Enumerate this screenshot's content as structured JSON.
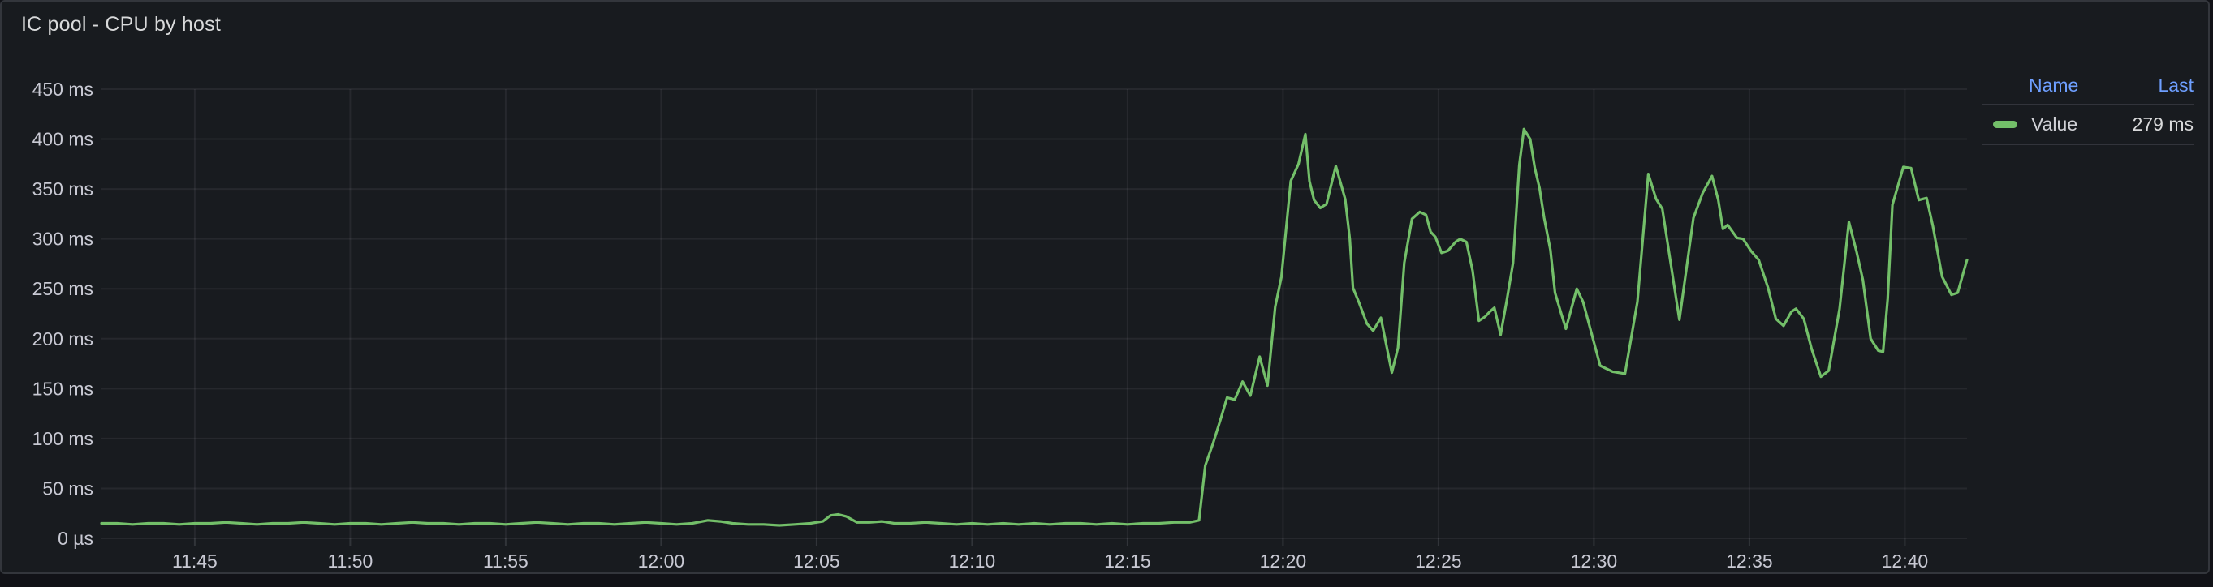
{
  "panel": {
    "title": "IC pool - CPU by host"
  },
  "legend": {
    "columns": [
      "Name",
      "Last"
    ],
    "rows": [
      {
        "name": "Value",
        "last": "279 ms",
        "color": "#73bf69"
      }
    ]
  },
  "colors": {
    "page_background": "#111217",
    "panel_background": "#181b1f",
    "panel_border": "#33363c",
    "series_green": "#73bf69",
    "legend_header_blue": "#6e9fff",
    "axis_text": "#c8c9d3",
    "title_text": "#d8d9da",
    "gridline": "rgba(204,204,220,0.08)"
  },
  "chart_data": {
    "type": "line",
    "title": "IC pool - CPU by host",
    "xlabel": "",
    "ylabel": "",
    "x_unit": "time of day (minutes after 11:40)",
    "y_unit": "ms",
    "x_range_minutes": [
      2,
      62
    ],
    "x_window": [
      "11:42",
      "12:42"
    ],
    "ylim": [
      0,
      450
    ],
    "grid": true,
    "legend_position": "right-top",
    "x_ticks": [
      {
        "t": 5,
        "label": "11:45"
      },
      {
        "t": 10,
        "label": "11:50"
      },
      {
        "t": 15,
        "label": "11:55"
      },
      {
        "t": 20,
        "label": "12:00"
      },
      {
        "t": 25,
        "label": "12:05"
      },
      {
        "t": 30,
        "label": "12:10"
      },
      {
        "t": 35,
        "label": "12:15"
      },
      {
        "t": 40,
        "label": "12:20"
      },
      {
        "t": 45,
        "label": "12:25"
      },
      {
        "t": 50,
        "label": "12:30"
      },
      {
        "t": 55,
        "label": "12:35"
      },
      {
        "t": 60,
        "label": "12:40"
      }
    ],
    "y_ticks": [
      {
        "v": 0,
        "label": "0 µs"
      },
      {
        "v": 50,
        "label": "50 ms"
      },
      {
        "v": 100,
        "label": "100 ms"
      },
      {
        "v": 150,
        "label": "150 ms"
      },
      {
        "v": 200,
        "label": "200 ms"
      },
      {
        "v": 250,
        "label": "250 ms"
      },
      {
        "v": 300,
        "label": "300 ms"
      },
      {
        "v": 350,
        "label": "350 ms"
      },
      {
        "v": 400,
        "label": "400 ms"
      },
      {
        "v": 450,
        "label": "450 ms"
      }
    ],
    "series": [
      {
        "name": "Value",
        "color": "#73bf69",
        "last_value_ms": 279,
        "last_label": "279 ms",
        "points": [
          [
            2,
            15
          ],
          [
            2.5,
            15
          ],
          [
            3,
            14
          ],
          [
            3.5,
            15
          ],
          [
            4,
            15
          ],
          [
            4.5,
            14
          ],
          [
            5,
            15
          ],
          [
            5.5,
            15
          ],
          [
            6,
            16
          ],
          [
            6.5,
            15
          ],
          [
            7,
            14
          ],
          [
            7.5,
            15
          ],
          [
            8,
            15
          ],
          [
            8.5,
            16
          ],
          [
            9,
            15
          ],
          [
            9.5,
            14
          ],
          [
            10,
            15
          ],
          [
            10.5,
            15
          ],
          [
            11,
            14
          ],
          [
            11.5,
            15
          ],
          [
            12,
            16
          ],
          [
            12.5,
            15
          ],
          [
            13,
            15
          ],
          [
            13.5,
            14
          ],
          [
            14,
            15
          ],
          [
            14.5,
            15
          ],
          [
            15,
            14
          ],
          [
            15.5,
            15
          ],
          [
            16,
            16
          ],
          [
            16.5,
            15
          ],
          [
            17,
            14
          ],
          [
            17.5,
            15
          ],
          [
            18,
            15
          ],
          [
            18.5,
            14
          ],
          [
            19,
            15
          ],
          [
            19.5,
            16
          ],
          [
            20,
            15
          ],
          [
            20.5,
            14
          ],
          [
            21,
            15
          ],
          [
            21.5,
            18
          ],
          [
            21.9,
            17
          ],
          [
            22.3,
            15
          ],
          [
            22.8,
            14
          ],
          [
            23.3,
            14
          ],
          [
            23.8,
            13
          ],
          [
            24.3,
            14
          ],
          [
            24.8,
            15
          ],
          [
            25.2,
            17
          ],
          [
            25.45,
            23
          ],
          [
            25.7,
            24
          ],
          [
            25.95,
            22
          ],
          [
            26.3,
            16
          ],
          [
            26.7,
            16
          ],
          [
            27.1,
            17
          ],
          [
            27.5,
            15
          ],
          [
            28,
            15
          ],
          [
            28.5,
            16
          ],
          [
            29,
            15
          ],
          [
            29.5,
            14
          ],
          [
            30,
            15
          ],
          [
            30.5,
            14
          ],
          [
            31,
            15
          ],
          [
            31.5,
            14
          ],
          [
            32,
            15
          ],
          [
            32.5,
            14
          ],
          [
            33,
            15
          ],
          [
            33.5,
            15
          ],
          [
            34,
            14
          ],
          [
            34.5,
            15
          ],
          [
            35,
            14
          ],
          [
            35.5,
            15
          ],
          [
            36,
            15
          ],
          [
            36.5,
            16
          ],
          [
            37,
            16
          ],
          [
            37.3,
            18
          ],
          [
            37.5,
            73
          ],
          [
            37.75,
            95
          ],
          [
            38,
            120
          ],
          [
            38.2,
            141
          ],
          [
            38.45,
            139
          ],
          [
            38.7,
            157
          ],
          [
            38.95,
            143
          ],
          [
            39.25,
            182
          ],
          [
            39.5,
            153
          ],
          [
            39.75,
            232
          ],
          [
            39.95,
            262
          ],
          [
            40.25,
            358
          ],
          [
            40.5,
            375
          ],
          [
            40.72,
            405
          ],
          [
            40.85,
            358
          ],
          [
            41,
            339
          ],
          [
            41.2,
            331
          ],
          [
            41.4,
            335
          ],
          [
            41.7,
            373
          ],
          [
            42,
            340
          ],
          [
            42.15,
            300
          ],
          [
            42.25,
            251
          ],
          [
            42.45,
            236
          ],
          [
            42.7,
            215
          ],
          [
            42.9,
            208
          ],
          [
            43.15,
            221
          ],
          [
            43.5,
            166
          ],
          [
            43.7,
            191
          ],
          [
            43.9,
            276
          ],
          [
            44.15,
            320
          ],
          [
            44.4,
            327
          ],
          [
            44.6,
            324
          ],
          [
            44.75,
            307
          ],
          [
            44.9,
            302
          ],
          [
            45.1,
            286
          ],
          [
            45.3,
            288
          ],
          [
            45.55,
            297
          ],
          [
            45.7,
            300
          ],
          [
            45.9,
            297
          ],
          [
            46.1,
            268
          ],
          [
            46.3,
            218
          ],
          [
            46.5,
            222
          ],
          [
            46.65,
            227
          ],
          [
            46.8,
            231
          ],
          [
            47,
            204
          ],
          [
            47.2,
            239
          ],
          [
            47.4,
            276
          ],
          [
            47.6,
            374
          ],
          [
            47.75,
            410
          ],
          [
            47.95,
            400
          ],
          [
            48.1,
            371
          ],
          [
            48.25,
            351
          ],
          [
            48.4,
            321
          ],
          [
            48.6,
            289
          ],
          [
            48.75,
            246
          ],
          [
            48.95,
            225
          ],
          [
            49.1,
            210
          ],
          [
            49.45,
            250
          ],
          [
            49.65,
            237
          ],
          [
            50.2,
            173
          ],
          [
            50.6,
            167
          ],
          [
            51,
            165
          ],
          [
            51.4,
            237
          ],
          [
            51.75,
            365
          ],
          [
            52,
            340
          ],
          [
            52.2,
            330
          ],
          [
            52.75,
            219
          ],
          [
            53.2,
            321
          ],
          [
            53.5,
            346
          ],
          [
            53.8,
            363
          ],
          [
            54,
            339
          ],
          [
            54.15,
            310
          ],
          [
            54.3,
            314
          ],
          [
            54.6,
            301
          ],
          [
            54.8,
            300
          ],
          [
            55.05,
            288
          ],
          [
            55.3,
            279
          ],
          [
            55.6,
            251
          ],
          [
            55.85,
            220
          ],
          [
            56.1,
            213
          ],
          [
            56.35,
            227
          ],
          [
            56.5,
            230
          ],
          [
            56.75,
            220
          ],
          [
            57,
            190
          ],
          [
            57.3,
            162
          ],
          [
            57.55,
            168
          ],
          [
            57.9,
            230
          ],
          [
            58.2,
            317
          ],
          [
            58.45,
            287
          ],
          [
            58.65,
            259
          ],
          [
            58.9,
            200
          ],
          [
            59.15,
            188
          ],
          [
            59.3,
            187
          ],
          [
            59.45,
            240
          ],
          [
            59.6,
            334
          ],
          [
            59.95,
            372
          ],
          [
            60.2,
            371
          ],
          [
            60.45,
            339
          ],
          [
            60.7,
            341
          ],
          [
            60.9,
            313
          ],
          [
            61.2,
            262
          ],
          [
            61.5,
            244
          ],
          [
            61.7,
            246
          ],
          [
            62,
            279
          ]
        ]
      }
    ]
  }
}
